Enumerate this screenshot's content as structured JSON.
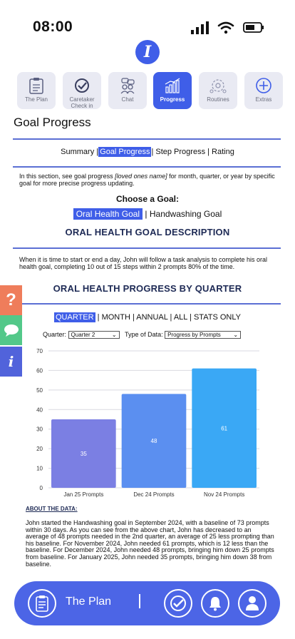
{
  "status": {
    "time": "08:00"
  },
  "tabs": [
    {
      "label": "The Plan",
      "icon": "clipboard-icon",
      "active": false
    },
    {
      "label": "Caretaker Check in",
      "icon": "check-badge-icon",
      "active": false
    },
    {
      "label": "Chat",
      "icon": "chat-people-icon",
      "active": false
    },
    {
      "label": "Progress",
      "icon": "bar-chart-icon",
      "active": true
    },
    {
      "label": "Routines",
      "icon": "routines-icon",
      "active": false
    },
    {
      "label": "Extras",
      "icon": "plus-circle-icon",
      "active": false
    }
  ],
  "page_title": "Goal Progress",
  "subnav": {
    "summary": "Summary |",
    "goal_progress": "Goal Progress",
    "rest": "| Step Progress | Rating"
  },
  "intro": {
    "before": "In this section, see goal progress ",
    "italic": "[loved ones name]",
    "after": " for month, quarter, or year by specific goal for more precise progress updating."
  },
  "choose_goal": "Choose a Goal:",
  "goals": {
    "selected": "Oral Health Goal",
    "other": "| Handwashing Goal"
  },
  "description_title": "ORAL HEALTH GOAL DESCRIPTION",
  "description": "When it is time to start or end a day, John will follow a task analysis to complete his oral health goal, completing 10 out of 15 steps within 2 prompts 80% of the time.",
  "progress_title": "ORAL HEALTH PROGRESS BY QUARTER",
  "period": {
    "selected": "QUARTER",
    "rest": "| MONTH | ANNUAL | ALL | STATS ONLY"
  },
  "filters": {
    "quarter_label": "Quarter:",
    "quarter_value": "Quarter 2",
    "type_label": "Type of Data:",
    "type_value": "Progress by Prompts"
  },
  "chart_data": {
    "type": "bar",
    "categories": [
      "Jan 25 Prompts",
      "Dec 24 Prompts",
      "Nov 24 Prompts"
    ],
    "values": [
      35,
      48,
      61
    ],
    "ylim": [
      0,
      70
    ],
    "yticks": [
      0,
      10,
      20,
      30,
      40,
      50,
      60,
      70
    ],
    "colors": [
      "#7b7fe3",
      "#5b8ff0",
      "#3aa8f5"
    ],
    "grid": true,
    "data_labels": [
      "35",
      "48",
      "61"
    ]
  },
  "about": {
    "heading": "ABOUT THE DATA:",
    "text": "John started the Handwashing goal in September 2024, with a baseline of 73 prompts within 30 days. As you can see from the above chart, John has decreased to an average of 48 prompts needed in the 2nd quarter, an average of 25 less prompting than his baseline. For November 2024, John needed 61 prompts, which is 12 less than the baseline. For December 2024, John needed 48 prompts, bringing him down 25 prompts from baseline.  For January 2025, John needed 35 prompts, bringing him down 38 from baseline."
  },
  "side_widgets": [
    "question-icon",
    "chat-bubble-icon",
    "info-icon"
  ],
  "bottom_bar": {
    "label": "The Plan",
    "icons": [
      "clipboard-icon",
      "check-badge-icon",
      "bell-icon",
      "user-icon"
    ]
  }
}
